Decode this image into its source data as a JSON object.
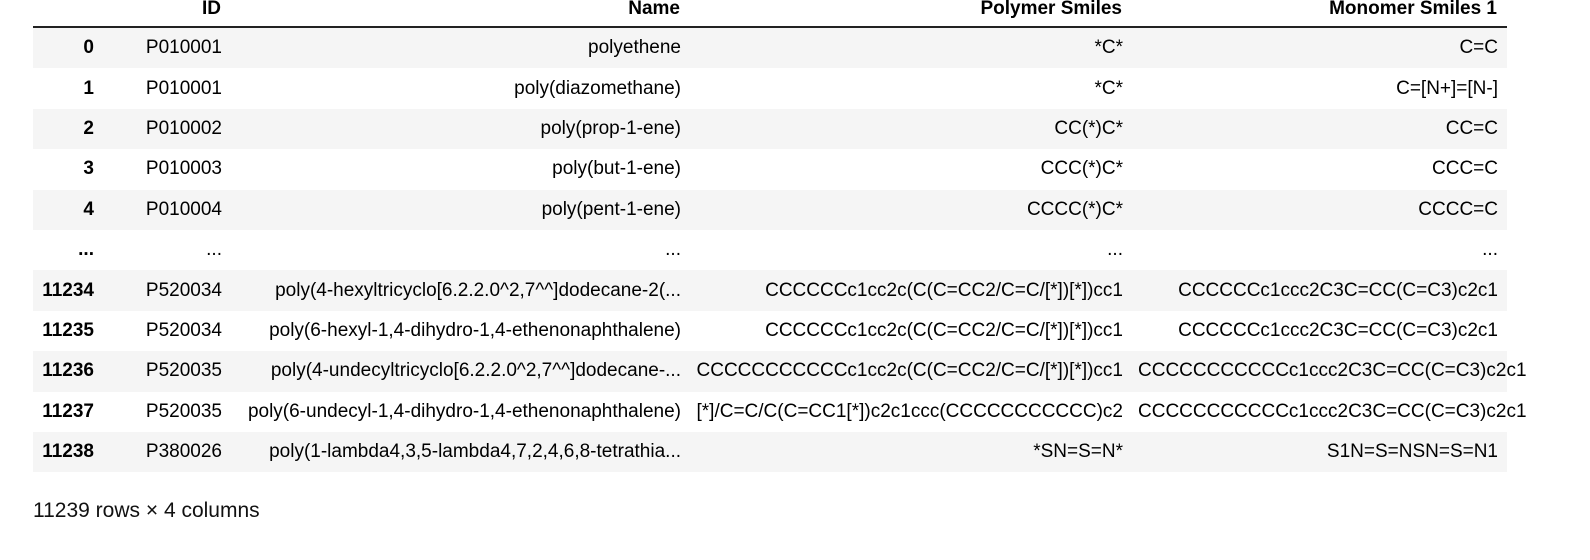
{
  "table": {
    "columns": [
      "",
      "ID",
      "Name",
      "Polymer Smiles",
      "Monomer Smiles 1"
    ],
    "rows": [
      {
        "index": "0",
        "id": "P010001",
        "name": "polyethene",
        "polymer_smiles": "*C*",
        "monomer_smiles": "C=C"
      },
      {
        "index": "1",
        "id": "P010001",
        "name": "poly(diazomethane)",
        "polymer_smiles": "*C*",
        "monomer_smiles": "C=[N+]=[N-]"
      },
      {
        "index": "2",
        "id": "P010002",
        "name": "poly(prop-1-ene)",
        "polymer_smiles": "CC(*)C*",
        "monomer_smiles": "CC=C"
      },
      {
        "index": "3",
        "id": "P010003",
        "name": "poly(but-1-ene)",
        "polymer_smiles": "CCC(*)C*",
        "monomer_smiles": "CCC=C"
      },
      {
        "index": "4",
        "id": "P010004",
        "name": "poly(pent-1-ene)",
        "polymer_smiles": "CCCC(*)C*",
        "monomer_smiles": "CCCC=C"
      },
      {
        "index": "...",
        "id": "...",
        "name": "...",
        "polymer_smiles": "...",
        "monomer_smiles": "..."
      },
      {
        "index": "11234",
        "id": "P520034",
        "name": "poly(4-hexyltricyclo[6.2.2.0^2,7^^]dodecane-2(...",
        "polymer_smiles": "CCCCCCc1cc2c(C(C=CC2/C=C/[*])[*])cc1",
        "monomer_smiles": "CCCCCCc1ccc2C3C=CC(C=C3)c2c1"
      },
      {
        "index": "11235",
        "id": "P520034",
        "name": "poly(6-hexyl-1,4-dihydro-1,4-ethenonaphthalene)",
        "polymer_smiles": "CCCCCCc1cc2c(C(C=CC2/C=C/[*])[*])cc1",
        "monomer_smiles": "CCCCCCc1ccc2C3C=CC(C=C3)c2c1"
      },
      {
        "index": "11236",
        "id": "P520035",
        "name": "poly(4-undecyltricyclo[6.2.2.0^2,7^^]dodecane-...",
        "polymer_smiles": "CCCCCCCCCCCc1cc2c(C(C=CC2/C=C/[*])[*])cc1",
        "monomer_smiles": "CCCCCCCCCCCc1ccc2C3C=CC(C=C3)c2c1"
      },
      {
        "index": "11237",
        "id": "P520035",
        "name": "poly(6-undecyl-1,4-dihydro-1,4-ethenonaphthalene)",
        "polymer_smiles": "[*]/C=C/C(C=CC1[*])c2c1ccc(CCCCCCCCCCC)c2",
        "monomer_smiles": "CCCCCCCCCCCc1ccc2C3C=CC(C=C3)c2c1"
      },
      {
        "index": "11238",
        "id": "P380026",
        "name": "poly(1-lambda4,3,5-lambda4,7,2,4,6,8-tetrathia...",
        "polymer_smiles": "*SN=S=N*",
        "monomer_smiles": "S1N=S=NSN=S=N1"
      }
    ]
  },
  "footer": "11239 rows × 4 columns"
}
